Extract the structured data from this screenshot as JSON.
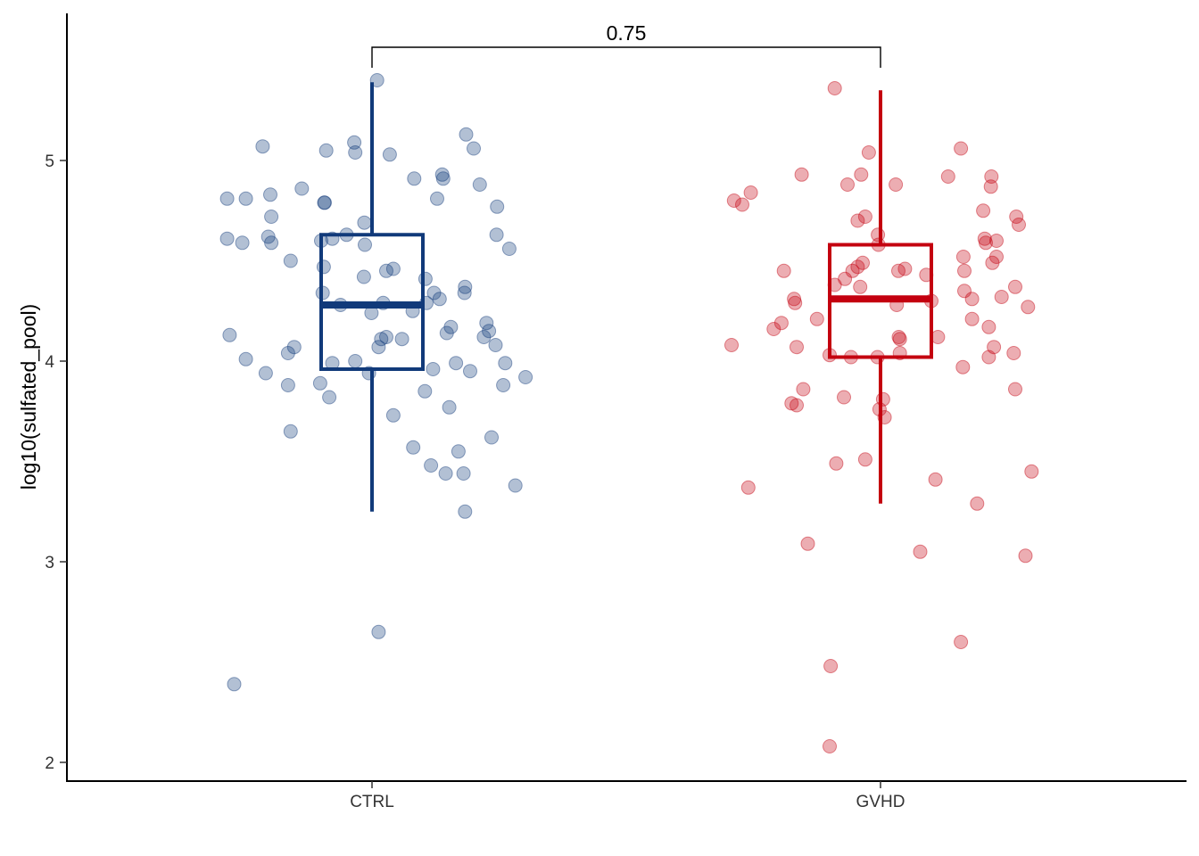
{
  "chart_data": {
    "type": "box",
    "ylabel": "log10(sulfated_pool)",
    "xlabel": "",
    "categories": [
      "CTRL",
      "GVHD"
    ],
    "ylim": [
      1.9,
      5.75
    ],
    "yticks": [
      "2",
      "3",
      "4",
      "5"
    ],
    "grid": false,
    "comparison": {
      "groups": [
        "CTRL",
        "GVHD"
      ],
      "label": "0.75"
    },
    "series": [
      {
        "category": "CTRL",
        "color": "#113a7a",
        "box": {
          "min": 3.25,
          "q1": 3.96,
          "median": 4.28,
          "q3": 4.63,
          "max": 5.39
        },
        "points": [
          [
            -0.285,
            4.81
          ],
          [
            -0.248,
            4.81
          ],
          [
            -0.2,
            4.83
          ],
          [
            -0.215,
            5.07
          ],
          [
            -0.09,
            5.05
          ],
          [
            -0.035,
            5.09
          ],
          [
            -0.033,
            5.04
          ],
          [
            0.01,
            5.4
          ],
          [
            0.035,
            5.03
          ],
          [
            0.083,
            4.91
          ],
          [
            0.138,
            4.93
          ],
          [
            0.14,
            4.91
          ],
          [
            0.185,
            5.13
          ],
          [
            0.2,
            5.06
          ],
          [
            0.212,
            4.88
          ],
          [
            0.128,
            4.81
          ],
          [
            0.246,
            4.77
          ],
          [
            0.245,
            4.63
          ],
          [
            0.27,
            4.56
          ],
          [
            -0.285,
            4.61
          ],
          [
            -0.255,
            4.59
          ],
          [
            -0.204,
            4.62
          ],
          [
            -0.198,
            4.59
          ],
          [
            -0.16,
            4.5
          ],
          [
            -0.138,
            4.86
          ],
          [
            -0.094,
            4.79
          ],
          [
            -0.093,
            4.79
          ],
          [
            -0.198,
            4.72
          ],
          [
            -0.1,
            4.6
          ],
          [
            -0.078,
            4.61
          ],
          [
            -0.05,
            4.63
          ],
          [
            -0.015,
            4.69
          ],
          [
            -0.014,
            4.58
          ],
          [
            -0.095,
            4.47
          ],
          [
            -0.016,
            4.42
          ],
          [
            0.028,
            4.45
          ],
          [
            0.042,
            4.46
          ],
          [
            -0.097,
            4.34
          ],
          [
            -0.062,
            4.28
          ],
          [
            -0.001,
            4.24
          ],
          [
            0.022,
            4.29
          ],
          [
            0.08,
            4.25
          ],
          [
            0.105,
            4.41
          ],
          [
            0.122,
            4.34
          ],
          [
            0.133,
            4.31
          ],
          [
            0.107,
            4.29
          ],
          [
            0.182,
            4.34
          ],
          [
            0.183,
            4.37
          ],
          [
            0.225,
            4.19
          ],
          [
            0.23,
            4.15
          ],
          [
            0.22,
            4.12
          ],
          [
            0.147,
            4.14
          ],
          [
            0.155,
            4.17
          ],
          [
            0.243,
            4.08
          ],
          [
            -0.28,
            4.13
          ],
          [
            -0.248,
            4.01
          ],
          [
            -0.209,
            3.94
          ],
          [
            -0.165,
            4.04
          ],
          [
            -0.153,
            4.07
          ],
          [
            -0.165,
            3.88
          ],
          [
            -0.102,
            3.89
          ],
          [
            -0.084,
            3.82
          ],
          [
            -0.078,
            3.99
          ],
          [
            -0.033,
            4.0
          ],
          [
            -0.006,
            3.94
          ],
          [
            0.018,
            4.11
          ],
          [
            0.028,
            4.12
          ],
          [
            0.013,
            4.07
          ],
          [
            0.059,
            4.11
          ],
          [
            0.12,
            3.96
          ],
          [
            0.104,
            3.85
          ],
          [
            0.165,
            3.99
          ],
          [
            0.193,
            3.95
          ],
          [
            0.262,
            3.99
          ],
          [
            0.258,
            3.88
          ],
          [
            0.302,
            3.92
          ],
          [
            0.042,
            3.73
          ],
          [
            0.152,
            3.77
          ],
          [
            -0.16,
            3.65
          ],
          [
            0.081,
            3.57
          ],
          [
            0.116,
            3.48
          ],
          [
            0.145,
            3.44
          ],
          [
            0.17,
            3.55
          ],
          [
            0.18,
            3.44
          ],
          [
            0.235,
            3.62
          ],
          [
            0.282,
            3.38
          ],
          [
            0.183,
            3.25
          ],
          [
            0.013,
            2.65
          ],
          [
            -0.271,
            2.39
          ]
        ]
      },
      {
        "category": "GVHD",
        "color": "#c4000f",
        "box": {
          "min": 3.29,
          "q1": 4.02,
          "median": 4.31,
          "q3": 4.58,
          "max": 5.35
        },
        "points": [
          [
            -0.288,
            4.8
          ],
          [
            -0.272,
            4.78
          ],
          [
            -0.255,
            4.84
          ],
          [
            -0.155,
            4.93
          ],
          [
            -0.09,
            5.36
          ],
          [
            -0.065,
            4.88
          ],
          [
            -0.038,
            4.93
          ],
          [
            -0.023,
            5.04
          ],
          [
            0.03,
            4.88
          ],
          [
            0.158,
            5.06
          ],
          [
            0.133,
            4.92
          ],
          [
            0.218,
            4.92
          ],
          [
            0.217,
            4.87
          ],
          [
            0.202,
            4.75
          ],
          [
            0.267,
            4.72
          ],
          [
            0.272,
            4.68
          ],
          [
            -0.045,
            4.7
          ],
          [
            -0.03,
            4.72
          ],
          [
            -0.005,
            4.63
          ],
          [
            -0.004,
            4.58
          ],
          [
            -0.19,
            4.45
          ],
          [
            -0.17,
            4.31
          ],
          [
            -0.168,
            4.29
          ],
          [
            -0.195,
            4.19
          ],
          [
            -0.21,
            4.16
          ],
          [
            -0.125,
            4.21
          ],
          [
            -0.09,
            4.38
          ],
          [
            -0.07,
            4.41
          ],
          [
            -0.055,
            4.45
          ],
          [
            -0.045,
            4.47
          ],
          [
            -0.035,
            4.49
          ],
          [
            -0.04,
            4.37
          ],
          [
            0.035,
            4.45
          ],
          [
            0.048,
            4.46
          ],
          [
            0.09,
            4.43
          ],
          [
            0.1,
            4.3
          ],
          [
            0.032,
            4.28
          ],
          [
            0.163,
            4.52
          ],
          [
            0.165,
            4.45
          ],
          [
            0.205,
            4.61
          ],
          [
            0.207,
            4.59
          ],
          [
            0.228,
            4.6
          ],
          [
            0.228,
            4.52
          ],
          [
            0.22,
            4.49
          ],
          [
            0.165,
            4.35
          ],
          [
            0.18,
            4.31
          ],
          [
            0.238,
            4.32
          ],
          [
            0.265,
            4.37
          ],
          [
            0.29,
            4.27
          ],
          [
            0.18,
            4.21
          ],
          [
            0.213,
            4.17
          ],
          [
            0.223,
            4.07
          ],
          [
            0.113,
            4.12
          ],
          [
            0.036,
            4.12
          ],
          [
            0.038,
            4.11
          ],
          [
            0.038,
            4.04
          ],
          [
            -0.006,
            4.02
          ],
          [
            -0.058,
            4.02
          ],
          [
            -0.1,
            4.03
          ],
          [
            -0.293,
            4.08
          ],
          [
            -0.165,
            4.07
          ],
          [
            -0.152,
            3.86
          ],
          [
            -0.175,
            3.79
          ],
          [
            -0.165,
            3.78
          ],
          [
            -0.072,
            3.82
          ],
          [
            0.005,
            3.81
          ],
          [
            -0.002,
            3.76
          ],
          [
            0.008,
            3.72
          ],
          [
            0.162,
            3.97
          ],
          [
            0.213,
            4.02
          ],
          [
            0.262,
            4.04
          ],
          [
            0.265,
            3.86
          ],
          [
            -0.26,
            3.37
          ],
          [
            -0.087,
            3.49
          ],
          [
            -0.03,
            3.51
          ],
          [
            0.108,
            3.41
          ],
          [
            0.19,
            3.29
          ],
          [
            0.297,
            3.45
          ],
          [
            -0.143,
            3.09
          ],
          [
            0.078,
            3.05
          ],
          [
            0.285,
            3.03
          ],
          [
            0.158,
            2.6
          ],
          [
            -0.098,
            2.48
          ],
          [
            -0.1,
            2.08
          ]
        ]
      }
    ]
  }
}
